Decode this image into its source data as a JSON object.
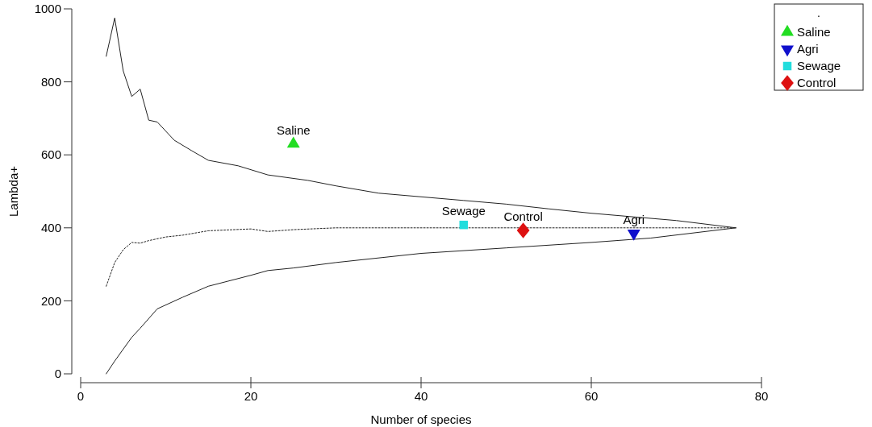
{
  "chart_data": {
    "type": "scatter",
    "xlabel": "Number of species",
    "ylabel": "Lambda+",
    "legend_title": ".",
    "legend": "top right",
    "xlim": [
      0,
      80
    ],
    "ylim": [
      0,
      1000
    ],
    "xticks": [
      0,
      20,
      40,
      60,
      80
    ],
    "yticks": [
      0,
      200,
      400,
      600,
      800,
      1000
    ],
    "grid": false,
    "series": [
      {
        "type": "line",
        "color": "#222222",
        "line_style": "solid",
        "marker": "none",
        "x": [
          3,
          4,
          5,
          6,
          7,
          8,
          9,
          11,
          13,
          15,
          18.5,
          22,
          26.7,
          30,
          35,
          40,
          45,
          50,
          55,
          60,
          65,
          70,
          77
        ],
        "values": [
          870,
          975,
          830,
          760,
          780,
          695,
          690,
          640,
          612,
          585,
          570,
          545,
          530,
          515,
          495,
          485,
          475,
          465,
          452,
          440,
          430,
          420,
          400
        ]
      },
      {
        "type": "line",
        "color": "#222222",
        "line_style": "dotted",
        "marker": "none",
        "x": [
          3,
          4,
          5,
          6,
          7,
          8,
          10,
          12,
          15,
          20,
          22,
          25,
          30,
          40,
          50,
          60,
          70,
          77
        ],
        "values": [
          240,
          305,
          340,
          360,
          358,
          365,
          375,
          380,
          392,
          397,
          390,
          395,
          400,
          400,
          400,
          400,
          400,
          400
        ]
      },
      {
        "type": "line",
        "color": "#222222",
        "line_style": "solid",
        "marker": "none",
        "x": [
          3,
          4,
          6,
          7,
          9,
          12,
          15,
          20,
          22,
          25,
          30,
          40,
          50,
          60,
          67,
          77
        ],
        "values": [
          0,
          35,
          100,
          125,
          178,
          210,
          240,
          270,
          283,
          290,
          305,
          330,
          345,
          360,
          372,
          400
        ]
      },
      {
        "name": "Saline",
        "color": "#22dd22",
        "marker": "triangle",
        "x": [
          25
        ],
        "values": [
          630
        ]
      },
      {
        "name": "Agri",
        "color": "#1010cc",
        "marker": "triangle-down",
        "x": [
          65
        ],
        "values": [
          385
        ]
      },
      {
        "name": "Sewage",
        "color": "#22dddd",
        "marker": "square",
        "x": [
          45
        ],
        "values": [
          408
        ]
      },
      {
        "name": "Control",
        "color": "#dd1111",
        "marker": "diamond",
        "x": [
          52
        ],
        "values": [
          393
        ]
      }
    ]
  }
}
